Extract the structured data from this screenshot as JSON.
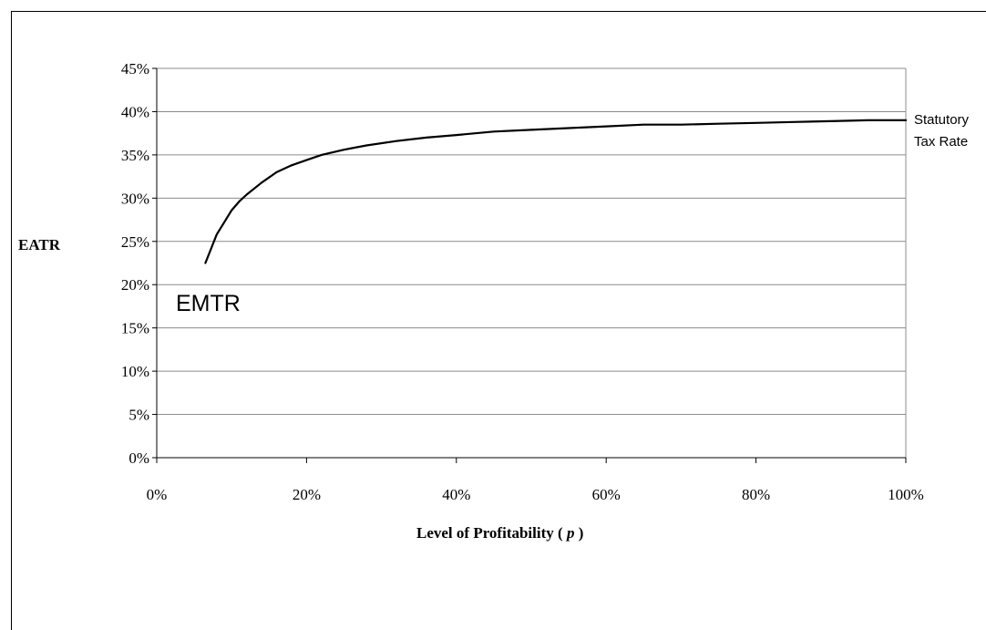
{
  "chart_data": {
    "type": "line",
    "xlabel": "Level of Profitability ( ",
    "xlabel_var": "p",
    "xlabel_close": " )",
    "ylabel": "EATR",
    "xlim": [
      0,
      100
    ],
    "ylim": [
      0,
      45
    ],
    "x_ticks": [
      0,
      20,
      40,
      60,
      80,
      100
    ],
    "y_ticks": [
      0,
      5,
      10,
      15,
      20,
      25,
      30,
      35,
      40,
      45
    ],
    "x_tick_labels": [
      "0%",
      "20%",
      "40%",
      "60%",
      "80%",
      "100%"
    ],
    "y_tick_labels": [
      "0%",
      "5%",
      "10%",
      "15%",
      "20%",
      "25%",
      "30%",
      "35%",
      "40%",
      "45%"
    ],
    "grid": "horizontal",
    "series": [
      {
        "x": [
          6.5,
          8,
          9,
          10,
          11,
          12,
          14,
          16,
          18,
          20,
          22,
          25,
          28,
          32,
          36,
          40,
          45,
          50,
          55,
          60,
          65,
          70,
          75,
          80,
          85,
          90,
          95,
          100
        ],
        "y": [
          22.5,
          25.8,
          27.2,
          28.6,
          29.6,
          30.4,
          31.8,
          33.0,
          33.8,
          34.4,
          35.0,
          35.6,
          36.1,
          36.6,
          37.0,
          37.3,
          37.7,
          37.9,
          38.1,
          38.3,
          38.5,
          38.5,
          38.6,
          38.7,
          38.8,
          38.9,
          39.0,
          39.0
        ]
      }
    ],
    "color": "#000000",
    "annotations": {
      "emtr": "EMTR",
      "statutory_line1": "Statutory",
      "statutory_line2": "Tax Rate"
    }
  }
}
